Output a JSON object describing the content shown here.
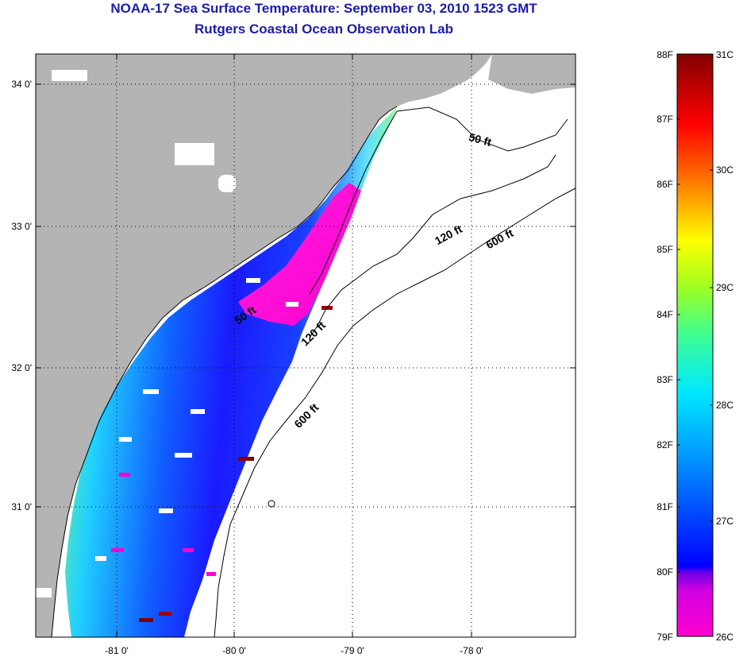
{
  "title": "NOAA-17 Sea Surface Temperature:  September 03, 2010 1523 GMT",
  "subtitle": "Rutgers Coastal Ocean Observation Lab",
  "map": {
    "lat_ticks": [
      "34 0'",
      "33 0'",
      "32 0'",
      "31 0'"
    ],
    "lon_ticks": [
      "-81 0'",
      "-80 0'",
      "-79 0'",
      "-78 0'"
    ],
    "contour_labels": [
      "50 ft",
      "120 ft",
      "600 ft",
      "50 ft",
      "120 ft",
      "600 ft"
    ],
    "colors": {
      "land": "#b4b4b4",
      "ocean": "#ffffff",
      "cloud": "#ffffff"
    }
  },
  "colorbar": {
    "fahrenheit_labels": [
      "88F",
      "87F",
      "86F",
      "85F",
      "84F",
      "83F",
      "82F",
      "81F",
      "80F",
      "79F"
    ],
    "celsius_labels": [
      "31C",
      "30C",
      "29C",
      "28C",
      "27C",
      "26C"
    ],
    "colors": [
      "#ff00d0",
      "#8a00e6",
      "#0000ff",
      "#0070ff",
      "#00e0ff",
      "#40ff90",
      "#c0ff00",
      "#ffff00",
      "#ff9000",
      "#ff0000",
      "#800000"
    ]
  }
}
